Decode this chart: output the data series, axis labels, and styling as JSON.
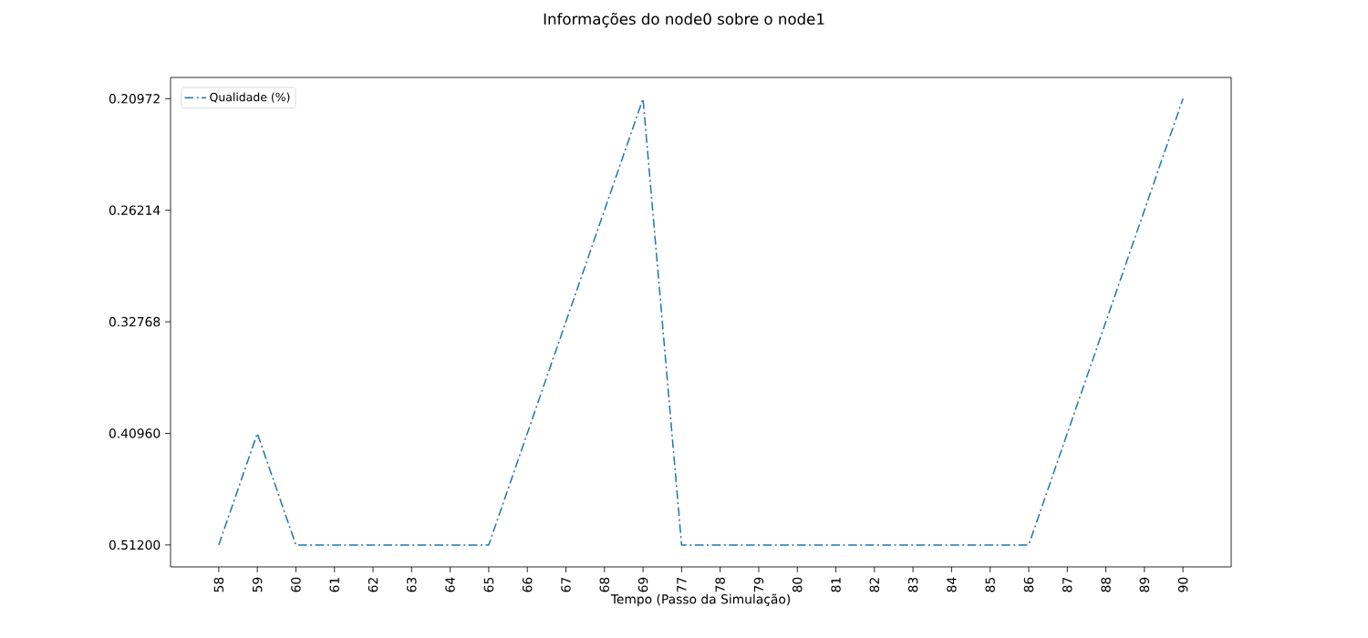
{
  "chart_data": {
    "type": "line",
    "title": "Informações do node0 sobre o node1",
    "xlabel": "Tempo (Passo da Simulação)",
    "categories": [
      "58",
      "59",
      "60",
      "61",
      "62",
      "63",
      "64",
      "65",
      "66",
      "67",
      "68",
      "69",
      "77",
      "78",
      "79",
      "80",
      "81",
      "82",
      "83",
      "84",
      "85",
      "86",
      "87",
      "88",
      "89",
      "90"
    ],
    "series": [
      {
        "name": "Qualidade (%)",
        "color": "#1f77b4",
        "values": [
          0.512,
          0.4096,
          0.512,
          0.512,
          0.512,
          0.512,
          0.512,
          0.512,
          0.4096,
          0.32768,
          0.26214,
          0.20972,
          0.512,
          0.512,
          0.512,
          0.512,
          0.512,
          0.512,
          0.512,
          0.512,
          0.512,
          0.512,
          0.4096,
          0.32768,
          0.26214,
          0.20972
        ]
      }
    ],
    "log": true,
    "ylim": [
      0.535,
      0.201
    ],
    "yticks": [
      {
        "value": 0.512,
        "label": "0.51200"
      },
      {
        "value": 0.4096,
        "label": "0.40960"
      },
      {
        "value": 0.32768,
        "label": "0.32768"
      },
      {
        "value": 0.26214,
        "label": "0.26214"
      },
      {
        "value": 0.20972,
        "label": "0.20972"
      }
    ],
    "legend": "top left",
    "line_style": "dashdot",
    "grid": false
  }
}
